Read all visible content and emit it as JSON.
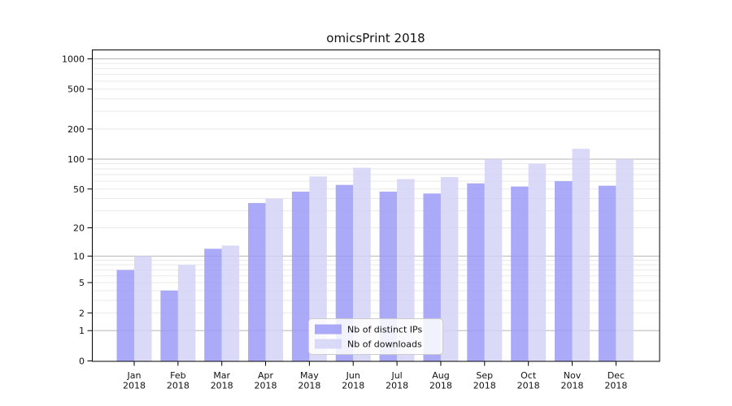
{
  "title": "omicsPrint 2018",
  "chart_data": {
    "type": "bar",
    "title": "omicsPrint 2018",
    "x": [
      "Jan",
      "Feb",
      "Mar",
      "Apr",
      "May",
      "Jun",
      "Jul",
      "Aug",
      "Sep",
      "Oct",
      "Nov",
      "Dec"
    ],
    "x_year": "2018",
    "series": [
      {
        "name": "Nb of distinct IPs",
        "color": "#9b9bf7",
        "values": [
          7,
          4,
          12,
          36,
          47,
          55,
          47,
          45,
          57,
          53,
          60,
          54
        ]
      },
      {
        "name": "Nb of downloads",
        "color": "#d4d4f7",
        "values": [
          10,
          8,
          13,
          40,
          67,
          82,
          63,
          66,
          100,
          90,
          127,
          100
        ]
      }
    ],
    "yscale": "log1p",
    "ylim": [
      0,
      1230
    ],
    "yticks": [
      0,
      1,
      2,
      5,
      10,
      20,
      50,
      100,
      200,
      500,
      1000
    ],
    "grid_major": [
      1,
      10,
      100,
      1000
    ],
    "grid_minor": [
      2,
      3,
      4,
      5,
      6,
      7,
      8,
      9,
      20,
      30,
      40,
      50,
      60,
      70,
      80,
      90,
      200,
      300,
      400,
      500,
      600,
      700,
      800,
      900
    ],
    "grid": true,
    "legend_position": "lower center",
    "bar_opacity": 0.85,
    "background": "#ffffff"
  }
}
